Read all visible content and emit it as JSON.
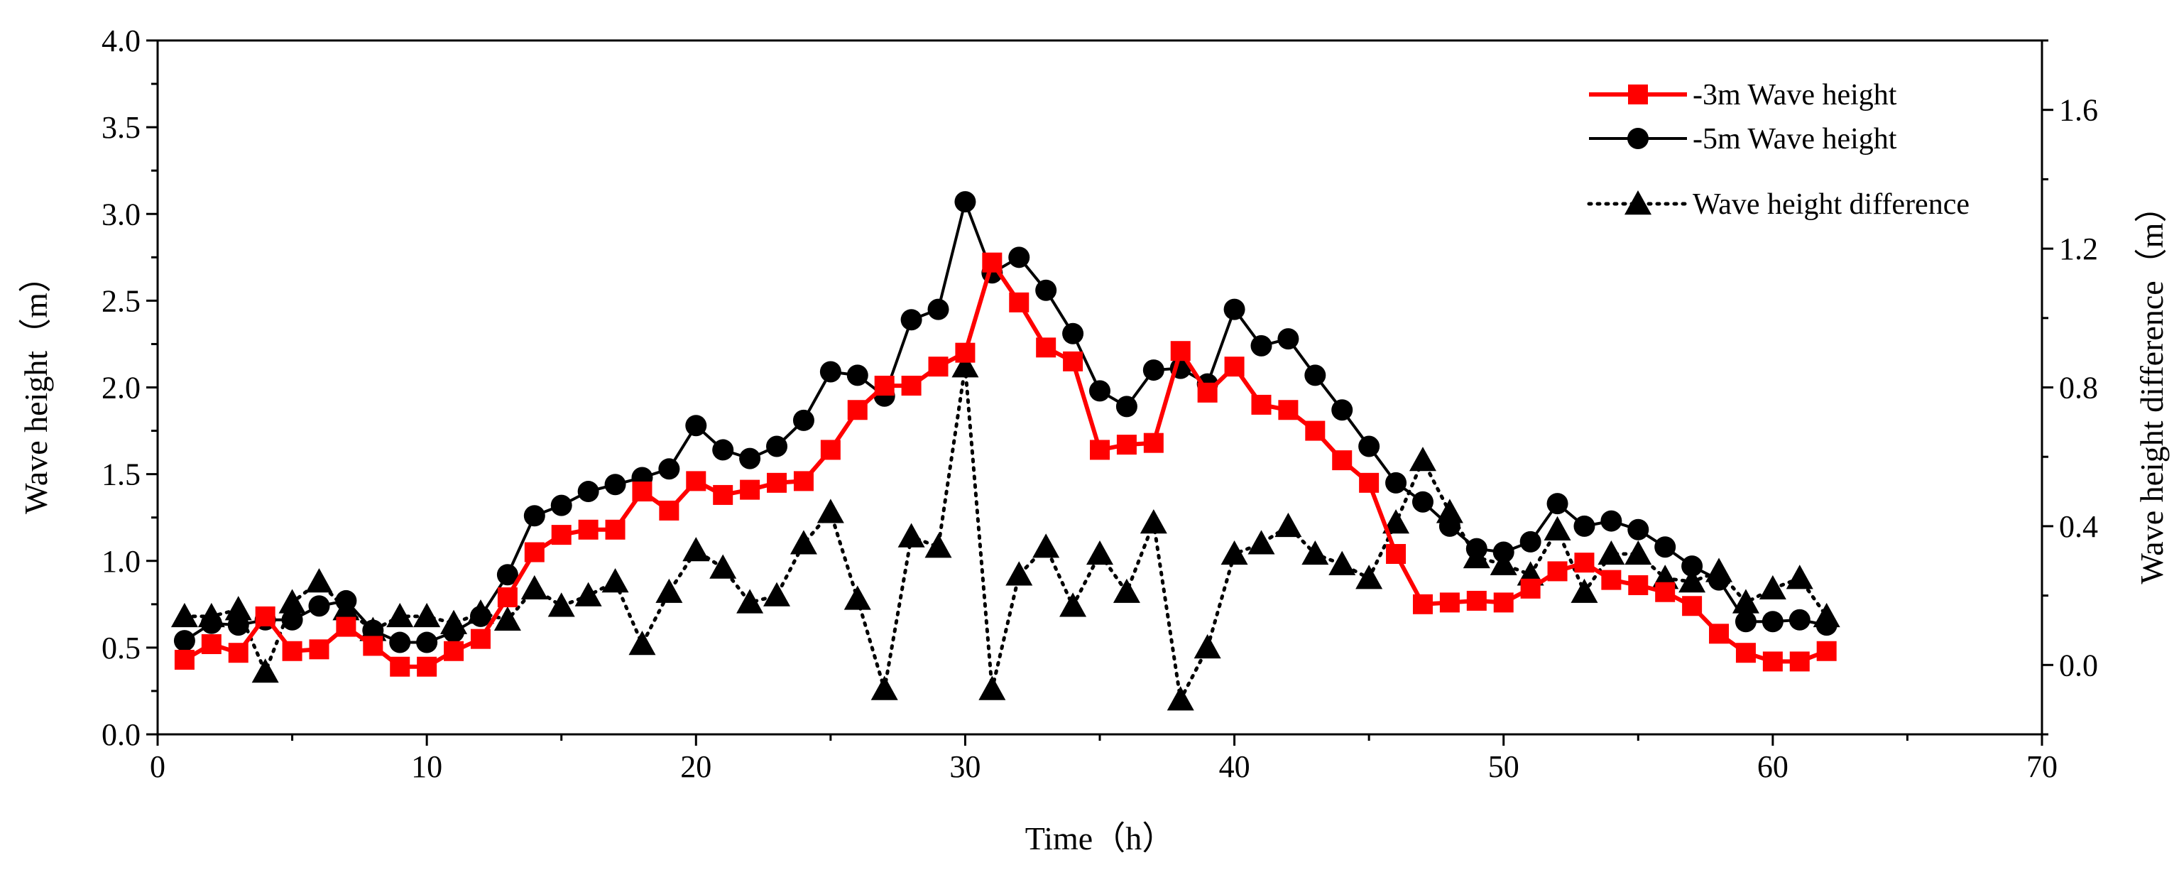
{
  "chart_data": {
    "type": "line",
    "title": "",
    "xlabel": "Time（h）",
    "ylabel_left": "Wave height（m）",
    "ylabel_right": "Wave height difference（m）",
    "xlim": [
      0,
      70
    ],
    "ylim_left": [
      0,
      4
    ],
    "ylim_right": [
      -0.2,
      1.8
    ],
    "x_ticks": [
      0,
      10,
      20,
      30,
      40,
      50,
      60,
      70
    ],
    "x_tick_labels": [
      "0",
      "10",
      "20",
      "30",
      "40",
      "50",
      "60",
      "70"
    ],
    "y_left_ticks": [
      0,
      0.5,
      1.0,
      1.5,
      2.0,
      2.5,
      3.0,
      3.5,
      4.0
    ],
    "y_left_tick_labels": [
      "0.0",
      "0.5",
      "1.0",
      "1.5",
      "2.0",
      "2.5",
      "3.0",
      "3.5",
      "4.0"
    ],
    "y_right_ticks": [
      0,
      0.4,
      0.8,
      1.2,
      1.6
    ],
    "y_right_tick_labels": [
      "0.0",
      "0.4",
      "0.8",
      "1.2",
      "1.6"
    ],
    "x": [
      1,
      2,
      3,
      4,
      5,
      6,
      7,
      8,
      9,
      10,
      11,
      12,
      13,
      14,
      15,
      16,
      17,
      18,
      19,
      20,
      21,
      22,
      23,
      24,
      25,
      26,
      27,
      28,
      29,
      30,
      31,
      32,
      33,
      34,
      35,
      36,
      37,
      38,
      39,
      40,
      41,
      42,
      43,
      44,
      45,
      46,
      47,
      48,
      49,
      50,
      51,
      52,
      53,
      54,
      55,
      56,
      57,
      58,
      59,
      60,
      61,
      62
    ],
    "series": [
      {
        "name": "-3m Wave height",
        "axis": "left",
        "color": "#ff0000",
        "marker": "square",
        "line": "solid",
        "values": [
          0.43,
          0.52,
          0.47,
          0.68,
          0.48,
          0.49,
          0.62,
          0.51,
          0.39,
          0.39,
          0.48,
          0.55,
          0.79,
          1.05,
          1.15,
          1.18,
          1.18,
          1.4,
          1.29,
          1.46,
          1.38,
          1.41,
          1.45,
          1.46,
          1.64,
          1.87,
          2.01,
          2.01,
          2.12,
          2.2,
          2.72,
          2.49,
          2.23,
          2.15,
          1.64,
          1.67,
          1.68,
          2.21,
          1.97,
          2.12,
          1.9,
          1.87,
          1.75,
          1.58,
          1.45,
          1.04,
          0.75,
          0.76,
          0.77,
          0.76,
          0.84,
          0.94,
          0.99,
          0.89,
          0.86,
          0.82,
          0.74,
          0.58,
          0.47,
          0.42,
          0.42,
          0.48
        ]
      },
      {
        "name": "-5m Wave height",
        "axis": "left",
        "color": "#000000",
        "marker": "circle",
        "line": "solid",
        "values": [
          0.54,
          0.64,
          0.63,
          0.66,
          0.66,
          0.74,
          0.77,
          0.6,
          0.53,
          0.53,
          0.59,
          0.68,
          0.92,
          1.26,
          1.32,
          1.4,
          1.44,
          1.48,
          1.53,
          1.78,
          1.64,
          1.59,
          1.66,
          1.81,
          2.09,
          2.07,
          1.95,
          2.39,
          2.45,
          3.07,
          2.66,
          2.75,
          2.56,
          2.31,
          1.98,
          1.89,
          2.1,
          2.11,
          2.02,
          2.45,
          2.24,
          2.28,
          2.07,
          1.87,
          1.66,
          1.45,
          1.34,
          1.2,
          1.07,
          1.05,
          1.11,
          1.33,
          1.2,
          1.23,
          1.18,
          1.08,
          0.97,
          0.89,
          0.65,
          0.65,
          0.66,
          0.63
        ]
      },
      {
        "name": "Wave height difference",
        "axis": "right",
        "color": "#000000",
        "marker": "triangle",
        "line": "dotted",
        "values": [
          0.14,
          0.14,
          0.16,
          -0.02,
          0.18,
          0.24,
          0.16,
          0.1,
          0.14,
          0.14,
          0.12,
          0.15,
          0.13,
          0.22,
          0.17,
          0.2,
          0.24,
          0.06,
          0.21,
          0.33,
          0.28,
          0.18,
          0.2,
          0.35,
          0.44,
          0.19,
          -0.07,
          0.37,
          0.34,
          0.86,
          -0.07,
          0.26,
          0.34,
          0.17,
          0.32,
          0.21,
          0.41,
          -0.1,
          0.05,
          0.32,
          0.35,
          0.4,
          0.32,
          0.29,
          0.25,
          0.41,
          0.59,
          0.44,
          0.31,
          0.29,
          0.26,
          0.39,
          0.21,
          0.32,
          0.32,
          0.25,
          0.24,
          0.27,
          0.18,
          0.22,
          0.25,
          0.14
        ]
      }
    ],
    "legend_position": "top-right",
    "legend": [
      "-3m Wave height",
      "-5m Wave height",
      "Wave height difference"
    ],
    "grid": false
  }
}
